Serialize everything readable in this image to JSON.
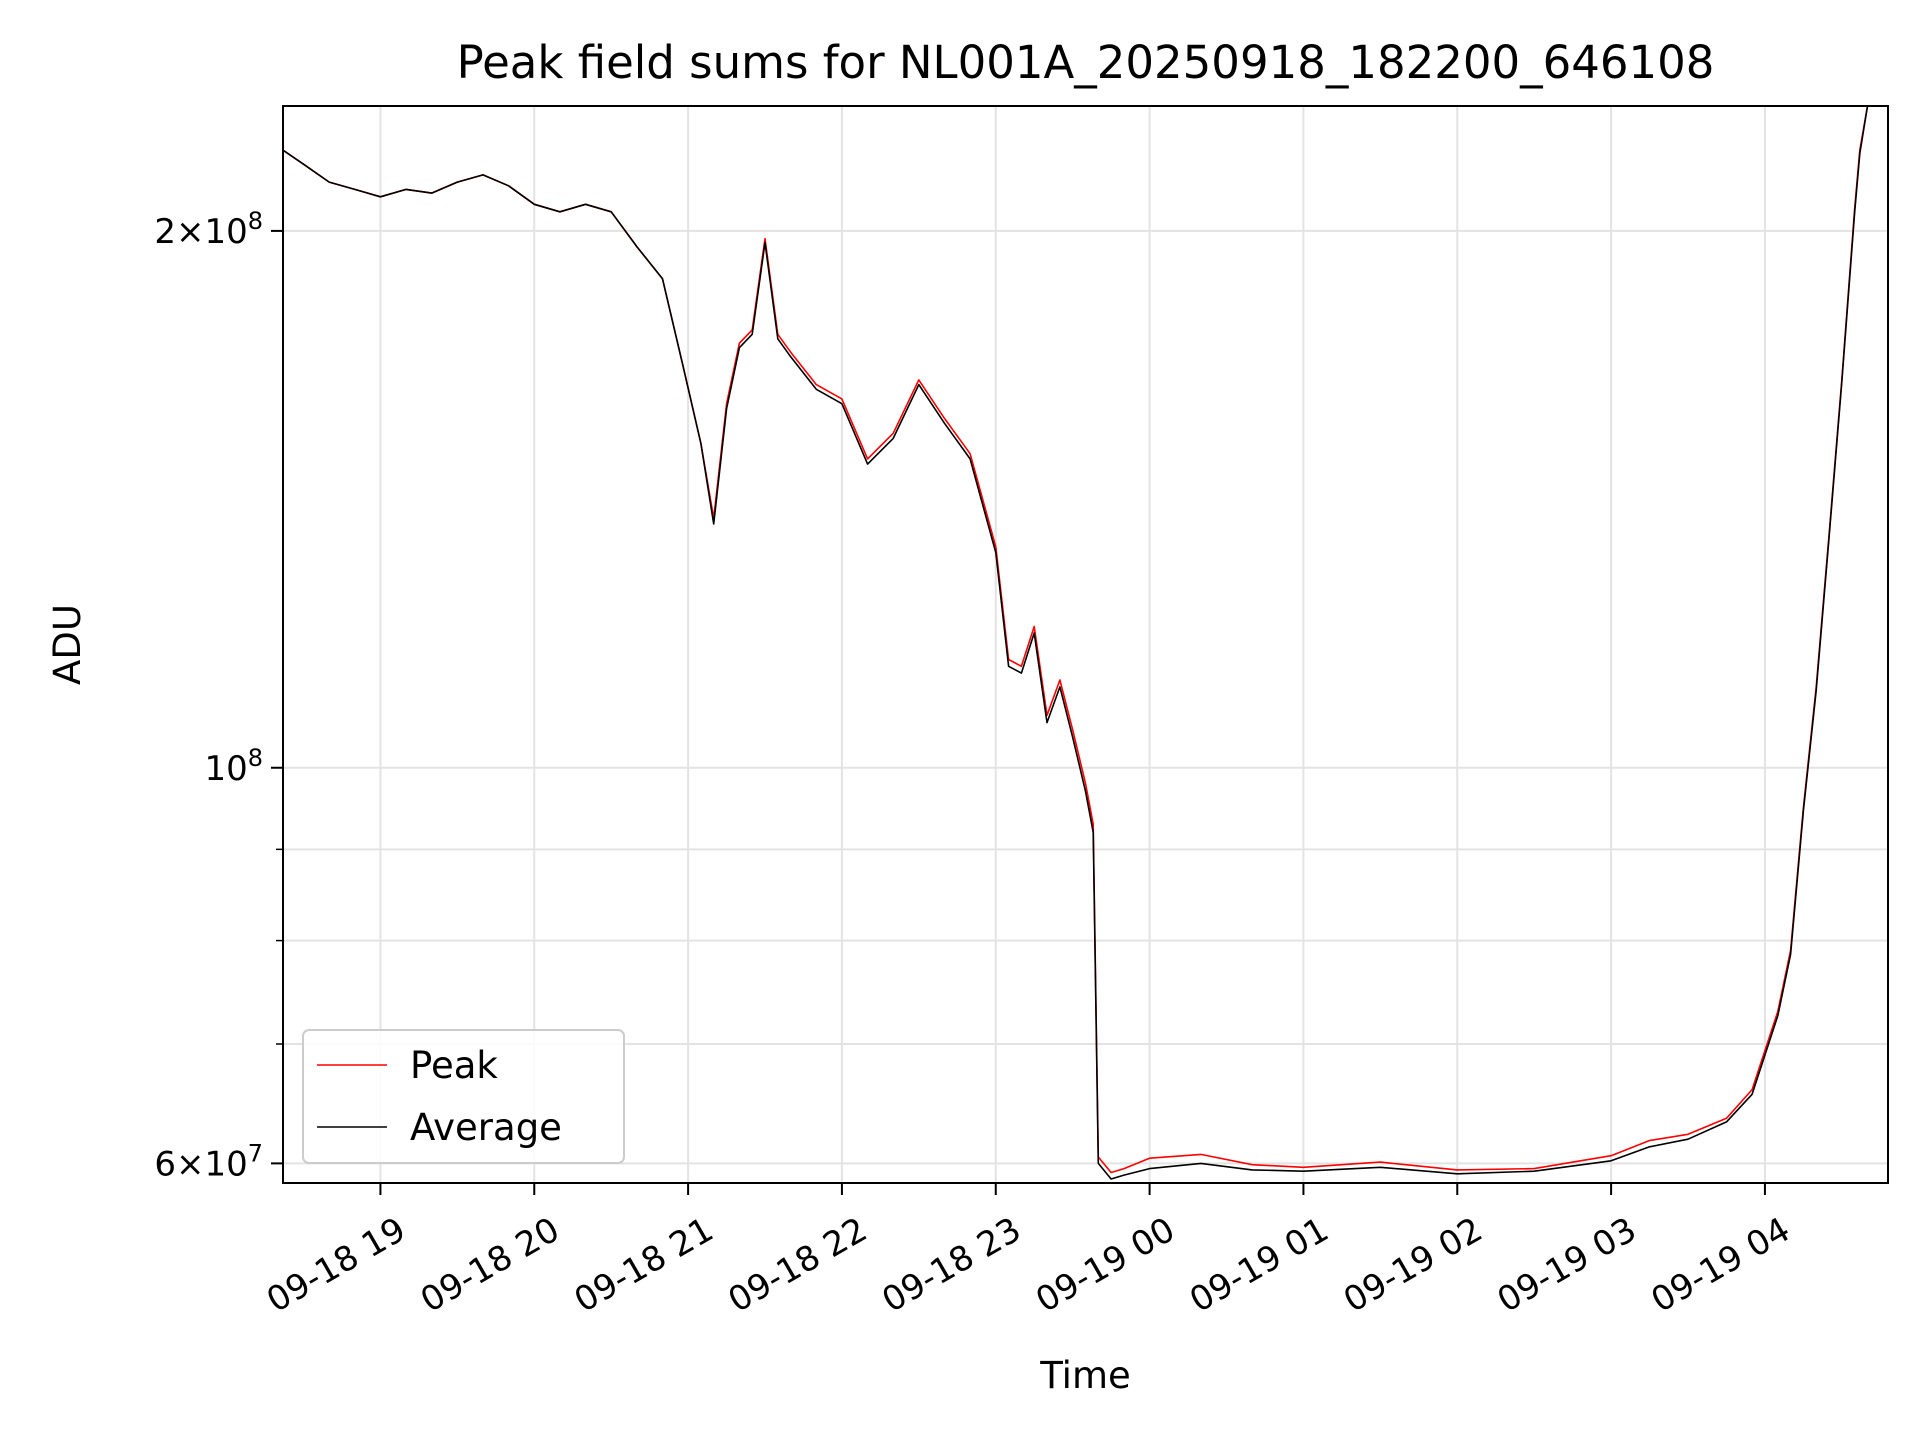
{
  "chart_data": {
    "type": "line",
    "title": "Peak field sums for NL001A_20250918_182200_646108",
    "xlabel": "Time",
    "ylabel": "ADU",
    "xscale": "time",
    "yscale": "log",
    "xlim": [
      "2025-09-18 18:22",
      "2025-09-19 04:48"
    ],
    "ylim": [
      58500000,
      235000000
    ],
    "grid": true,
    "legend_placement": "lower-left",
    "x_ticks": [
      {
        "time": "2025-09-18 19:00",
        "label": "09-18 19"
      },
      {
        "time": "2025-09-18 20:00",
        "label": "09-18 20"
      },
      {
        "time": "2025-09-18 21:00",
        "label": "09-18 21"
      },
      {
        "time": "2025-09-18 22:00",
        "label": "09-18 22"
      },
      {
        "time": "2025-09-18 23:00",
        "label": "09-18 23"
      },
      {
        "time": "2025-09-19 00:00",
        "label": "09-19 00"
      },
      {
        "time": "2025-09-19 01:00",
        "label": "09-19 01"
      },
      {
        "time": "2025-09-19 02:00",
        "label": "09-19 02"
      },
      {
        "time": "2025-09-19 03:00",
        "label": "09-19 03"
      },
      {
        "time": "2025-09-19 04:00",
        "label": "09-19 04"
      }
    ],
    "y_major_ticks": [
      {
        "value": 60000000,
        "mantissa": "6",
        "exponent": "7"
      },
      {
        "value": 100000000,
        "mantissa": "",
        "exponent": "8"
      },
      {
        "value": 200000000,
        "mantissa": "2",
        "exponent": "8"
      }
    ],
    "y_minor_ticks": [
      70000000,
      80000000,
      90000000
    ],
    "series": [
      {
        "name": "Peak",
        "color": "#ff0000",
        "x": [
          "2025-09-18 18:22",
          "2025-09-18 18:30",
          "2025-09-18 18:40",
          "2025-09-18 18:50",
          "2025-09-18 19:00",
          "2025-09-18 19:10",
          "2025-09-18 19:20",
          "2025-09-18 19:30",
          "2025-09-18 19:40",
          "2025-09-18 19:50",
          "2025-09-18 20:00",
          "2025-09-18 20:10",
          "2025-09-18 20:20",
          "2025-09-18 20:30",
          "2025-09-18 20:40",
          "2025-09-18 20:50",
          "2025-09-18 20:58",
          "2025-09-18 21:05",
          "2025-09-18 21:10",
          "2025-09-18 21:15",
          "2025-09-18 21:20",
          "2025-09-18 21:25",
          "2025-09-18 21:30",
          "2025-09-18 21:35",
          "2025-09-18 21:40",
          "2025-09-18 21:50",
          "2025-09-18 22:00",
          "2025-09-18 22:10",
          "2025-09-18 22:20",
          "2025-09-18 22:30",
          "2025-09-18 22:40",
          "2025-09-18 22:50",
          "2025-09-18 23:00",
          "2025-09-18 23:05",
          "2025-09-18 23:10",
          "2025-09-18 23:15",
          "2025-09-18 23:20",
          "2025-09-18 23:25",
          "2025-09-18 23:30",
          "2025-09-18 23:35",
          "2025-09-18 23:38",
          "2025-09-18 23:40",
          "2025-09-18 23:45",
          "2025-09-18 23:50",
          "2025-09-19 00:00",
          "2025-09-19 00:20",
          "2025-09-19 00:40",
          "2025-09-19 01:00",
          "2025-09-19 01:30",
          "2025-09-19 02:00",
          "2025-09-19 02:30",
          "2025-09-19 03:00",
          "2025-09-19 03:15",
          "2025-09-19 03:30",
          "2025-09-19 03:45",
          "2025-09-19 03:55",
          "2025-09-19 04:05",
          "2025-09-19 04:10",
          "2025-09-19 04:15",
          "2025-09-19 04:20",
          "2025-09-19 04:25",
          "2025-09-19 04:30",
          "2025-09-19 04:35",
          "2025-09-19 04:37",
          "2025-09-19 04:40"
        ],
        "y": [
          222000000,
          218000000,
          213000000,
          211000000,
          209000000,
          211000000,
          210000000,
          213000000,
          215000000,
          212000000,
          207000000,
          205000000,
          207000000,
          205000000,
          196000000,
          188000000,
          168000000,
          152000000,
          138000000,
          160000000,
          173000000,
          176000000,
          198000000,
          175000000,
          171000000,
          164000000,
          161000000,
          149000000,
          154000000,
          165000000,
          157000000,
          150000000,
          133000000,
          115000000,
          114000000,
          120000000,
          107000000,
          112000000,
          105000000,
          98000000,
          93000000,
          60500000,
          59300000,
          59600000,
          60400000,
          60700000,
          59900000,
          59700000,
          60100000,
          59500000,
          59600000,
          60600000,
          61800000,
          62300000,
          63600000,
          66000000,
          73000000,
          79000000,
          95000000,
          111000000,
          135000000,
          165000000,
          206000000,
          222000000,
          235000000
        ]
      },
      {
        "name": "Average",
        "color": "#000000",
        "x": [
          "2025-09-18 18:22",
          "2025-09-18 18:30",
          "2025-09-18 18:40",
          "2025-09-18 18:50",
          "2025-09-18 19:00",
          "2025-09-18 19:10",
          "2025-09-18 19:20",
          "2025-09-18 19:30",
          "2025-09-18 19:40",
          "2025-09-18 19:50",
          "2025-09-18 20:00",
          "2025-09-18 20:10",
          "2025-09-18 20:20",
          "2025-09-18 20:30",
          "2025-09-18 20:40",
          "2025-09-18 20:50",
          "2025-09-18 20:58",
          "2025-09-18 21:05",
          "2025-09-18 21:10",
          "2025-09-18 21:15",
          "2025-09-18 21:20",
          "2025-09-18 21:25",
          "2025-09-18 21:30",
          "2025-09-18 21:35",
          "2025-09-18 21:40",
          "2025-09-18 21:50",
          "2025-09-18 22:00",
          "2025-09-18 22:10",
          "2025-09-18 22:20",
          "2025-09-18 22:30",
          "2025-09-18 22:40",
          "2025-09-18 22:50",
          "2025-09-18 23:00",
          "2025-09-18 23:05",
          "2025-09-18 23:10",
          "2025-09-18 23:15",
          "2025-09-18 23:20",
          "2025-09-18 23:25",
          "2025-09-18 23:30",
          "2025-09-18 23:35",
          "2025-09-18 23:38",
          "2025-09-18 23:40",
          "2025-09-18 23:45",
          "2025-09-18 23:50",
          "2025-09-19 00:00",
          "2025-09-19 00:20",
          "2025-09-19 00:40",
          "2025-09-19 01:00",
          "2025-09-19 01:30",
          "2025-09-19 02:00",
          "2025-09-19 02:30",
          "2025-09-19 03:00",
          "2025-09-19 03:15",
          "2025-09-19 03:30",
          "2025-09-19 03:45",
          "2025-09-19 03:55",
          "2025-09-19 04:05",
          "2025-09-19 04:10",
          "2025-09-19 04:15",
          "2025-09-19 04:20",
          "2025-09-19 04:25",
          "2025-09-19 04:30",
          "2025-09-19 04:35",
          "2025-09-19 04:37",
          "2025-09-19 04:40"
        ],
        "y": [
          222000000,
          218000000,
          213000000,
          211000000,
          209000000,
          211000000,
          210000000,
          213000000,
          215000000,
          212000000,
          207000000,
          205000000,
          207000000,
          205000000,
          196000000,
          188000000,
          168000000,
          152000000,
          137000000,
          159000000,
          172000000,
          175000000,
          197000000,
          174000000,
          170000000,
          163000000,
          160000000,
          148000000,
          153000000,
          164000000,
          156000000,
          149000000,
          132000000,
          114000000,
          113000000,
          119000000,
          106000000,
          111000000,
          104000000,
          97000000,
          92000000,
          60000000,
          58800000,
          59100000,
          59600000,
          60000000,
          59500000,
          59400000,
          59700000,
          59200000,
          59400000,
          60200000,
          61300000,
          61900000,
          63300000,
          65600000,
          72600000,
          78600000,
          94600000,
          110500000,
          134500000,
          164500000,
          205000000,
          221000000,
          235000000
        ]
      }
    ]
  }
}
